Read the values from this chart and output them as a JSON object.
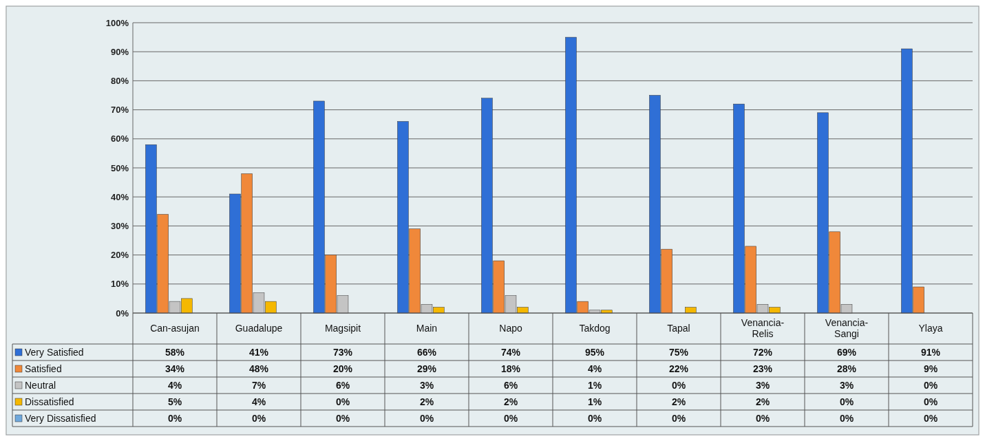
{
  "chart_data": {
    "type": "bar",
    "categories": [
      "Can-asujan",
      "Guadalupe",
      "Magsipit",
      "Main",
      "Napo",
      "Takdog",
      "Tapal",
      "Venancia-Relis",
      "Venancia-Sangi",
      "Ylaya"
    ],
    "series": [
      {
        "name": "Very Satisfied",
        "color": "#2f6fd6",
        "values": [
          58,
          41,
          73,
          66,
          74,
          95,
          75,
          72,
          69,
          91
        ],
        "value_labels": [
          "58%",
          "41%",
          "73%",
          "66%",
          "74%",
          "95%",
          "75%",
          "72%",
          "69%",
          "91%"
        ]
      },
      {
        "name": "Satisfied",
        "color": "#f0883a",
        "values": [
          34,
          48,
          20,
          29,
          18,
          4,
          22,
          23,
          28,
          9
        ],
        "value_labels": [
          "34%",
          "48%",
          "20%",
          "29%",
          "18%",
          "4%",
          "22%",
          "23%",
          "28%",
          "9%"
        ]
      },
      {
        "name": "Neutral",
        "color": "#c4c4c4",
        "values": [
          4,
          7,
          6,
          3,
          6,
          1,
          0,
          3,
          3,
          0
        ],
        "value_labels": [
          "4%",
          "7%",
          "6%",
          "3%",
          "6%",
          "1%",
          "0%",
          "3%",
          "3%",
          "0%"
        ]
      },
      {
        "name": "Dissatisfied",
        "color": "#f5b800",
        "values": [
          5,
          4,
          0,
          2,
          2,
          1,
          2,
          2,
          0,
          0
        ],
        "value_labels": [
          "5%",
          "4%",
          "0%",
          "2%",
          "2%",
          "1%",
          "2%",
          "2%",
          "0%",
          "0%"
        ]
      },
      {
        "name": "Very Dissatisfied",
        "color": "#6fa8dc",
        "values": [
          0,
          0,
          0,
          0,
          0,
          0,
          0,
          0,
          0,
          0
        ],
        "value_labels": [
          "0%",
          "0%",
          "0%",
          "0%",
          "0%",
          "0%",
          "0%",
          "0%",
          "0%",
          "0%"
        ]
      }
    ],
    "ylim": [
      0,
      100
    ],
    "yticks": [
      {
        "value": 0,
        "label": "0%"
      },
      {
        "value": 10,
        "label": "10%"
      },
      {
        "value": 20,
        "label": "20%"
      },
      {
        "value": 30,
        "label": "30%"
      },
      {
        "value": 40,
        "label": "40%"
      },
      {
        "value": 50,
        "label": "50%"
      },
      {
        "value": 60,
        "label": "60%"
      },
      {
        "value": 70,
        "label": "70%"
      },
      {
        "value": 80,
        "label": "80%"
      },
      {
        "value": 90,
        "label": "90%"
      },
      {
        "value": 100,
        "label": "100%"
      }
    ],
    "grid": "y",
    "legend": "bottom left"
  }
}
